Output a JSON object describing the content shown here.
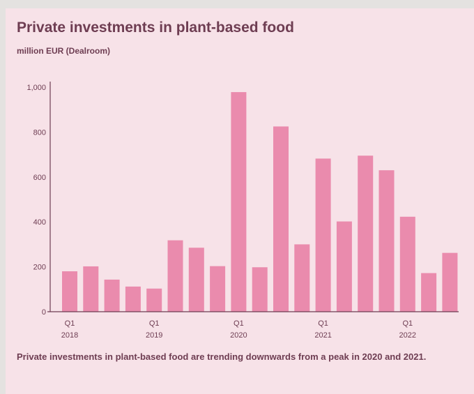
{
  "header": {
    "title": "Private investments in plant-based food",
    "subtitle": "million EUR (Dealroom)"
  },
  "caption": "Private investments in plant-based food are trending downwards from a peak in 2020 and 2021.",
  "colors": {
    "background": "#f7e2e8",
    "bar": "#ea8bad",
    "text": "#6e3d52",
    "axis": "#6e3d52"
  },
  "chart_data": {
    "type": "bar",
    "title": "Private investments in plant-based food",
    "subtitle": "million EUR (Dealroom)",
    "ylim": [
      0,
      1000
    ],
    "yticks": [
      "0",
      "200",
      "400",
      "600",
      "800",
      "1,000"
    ],
    "grid": false,
    "categories": [
      "2018 Q1",
      "2018 Q2",
      "2018 Q3",
      "2018 Q4",
      "2019 Q1",
      "2019 Q2",
      "2019 Q3",
      "2019 Q4",
      "2020 Q1",
      "2020 Q2",
      "2020 Q3",
      "2020 Q4",
      "2021 Q1",
      "2021 Q2",
      "2021 Q3",
      "2021 Q4",
      "2022 Q1",
      "2022 Q2",
      "2022 Q3"
    ],
    "values": [
      180,
      202,
      143,
      112,
      103,
      318,
      285,
      203,
      978,
      198,
      825,
      300,
      682,
      402,
      695,
      630,
      423,
      172,
      262
    ],
    "xtick_labels": [
      {
        "index": 0,
        "quarter": "Q1",
        "year": "2018"
      },
      {
        "index": 4,
        "quarter": "Q1",
        "year": "2019"
      },
      {
        "index": 8,
        "quarter": "Q1",
        "year": "2020"
      },
      {
        "index": 12,
        "quarter": "Q1",
        "year": "2021"
      },
      {
        "index": 16,
        "quarter": "Q1",
        "year": "2022"
      }
    ]
  }
}
